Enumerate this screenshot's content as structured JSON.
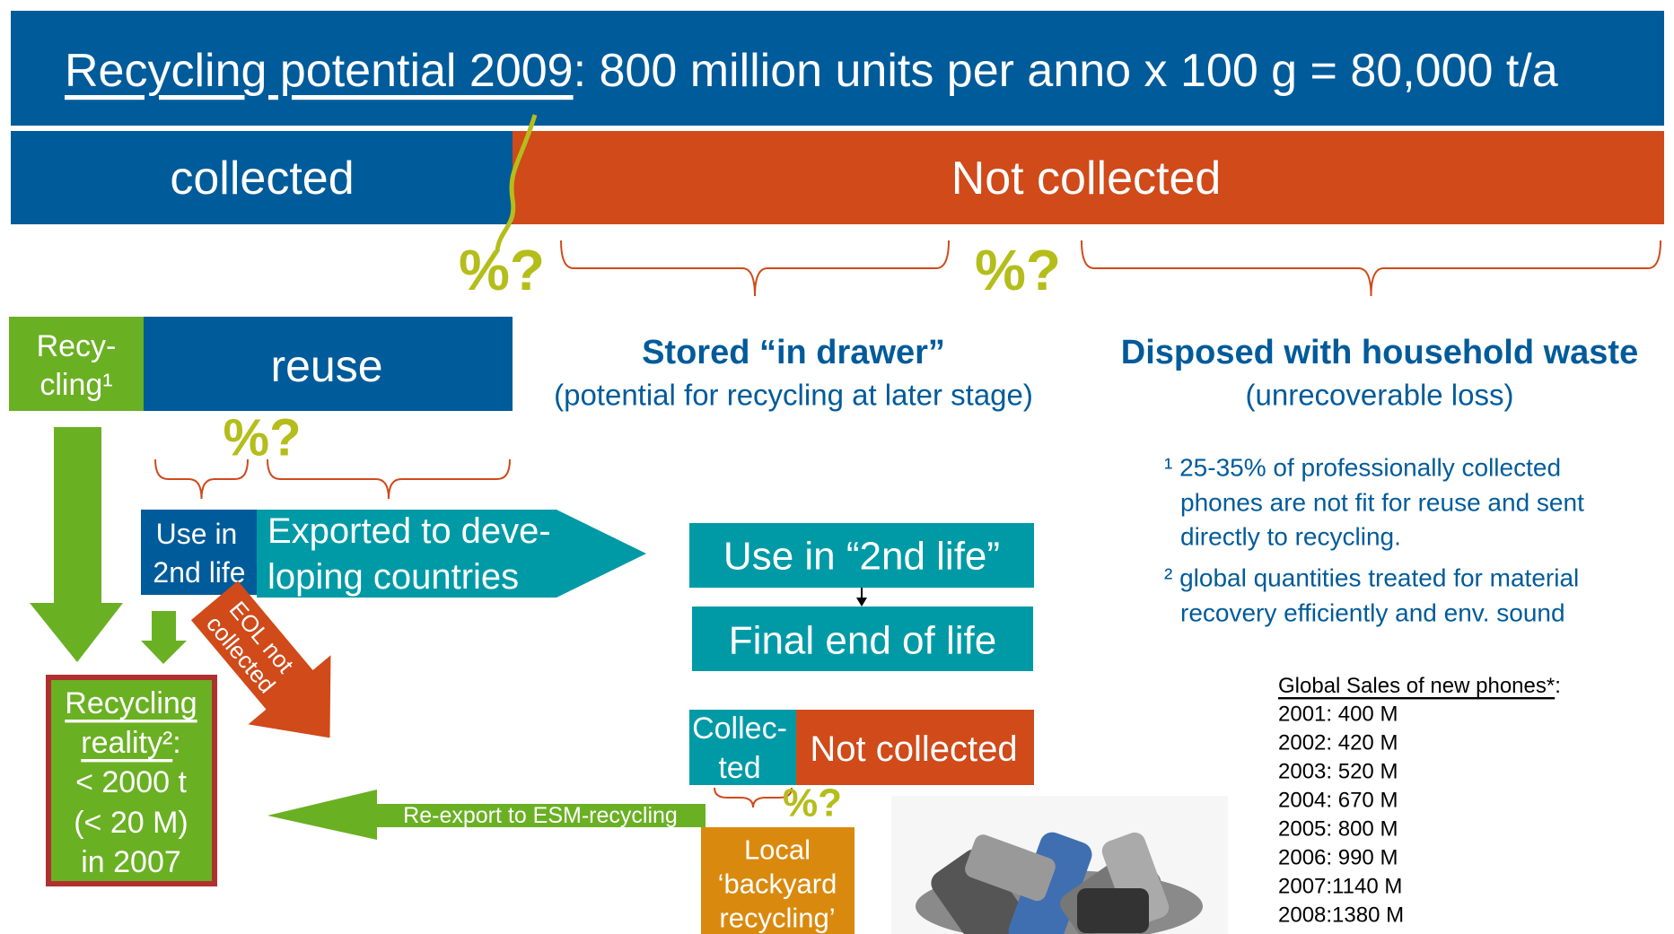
{
  "title": {
    "underlined": "Recycling potential 2009",
    "rest": ": 800 million units per anno x 100 g = 80,000 t/a"
  },
  "split": {
    "collected": "collected",
    "not_collected": "Not collected"
  },
  "question_marks": [
    "%?",
    "%?",
    "%?",
    "%?"
  ],
  "recycling_box": [
    "Recy-",
    "cling¹"
  ],
  "reuse_box": "reuse",
  "stored": {
    "heading": "Stored “in drawer”",
    "note": "(potential for recycling at later stage)"
  },
  "disposed": {
    "heading": "Disposed with household waste",
    "note": "(unrecoverable loss)"
  },
  "footnotes": [
    [
      "¹ 25-35% of professionally collected",
      "phones are not fit for reuse and sent",
      "directly to recycling."
    ],
    [
      "² global quantities treated for material",
      "recovery efficiently and env. sound"
    ]
  ],
  "use_second_life": [
    "Use in",
    "2nd life"
  ],
  "exported": [
    "Exported to deve-",
    "loping countries"
  ],
  "eol_arrow": [
    "EOL not",
    "collected"
  ],
  "reality": {
    "heading": [
      "Recycling",
      "reality²"
    ],
    "colon": ":",
    "lines": [
      "< 2000 t",
      "(< 20 M)",
      "in 2007"
    ]
  },
  "re_export": "Re-export to ESM-recycling",
  "drawer_flow": {
    "use": "Use in “2nd life”",
    "final": "Final end of life",
    "collected": [
      "Collec-",
      "ted"
    ],
    "not_collected": "Not collected",
    "backyard": [
      "Local",
      "‘backyard",
      "recycling’"
    ]
  },
  "global_sales": {
    "heading": "Global Sales of new phones*",
    "colon": ":",
    "items": [
      "2001: 400 M",
      "2002: 420 M",
      "2003: 520 M",
      "2004: 670 M",
      "2005: 800 M",
      "2006: 990 M",
      "2007:1140 M",
      "2008:1380 M"
    ]
  }
}
